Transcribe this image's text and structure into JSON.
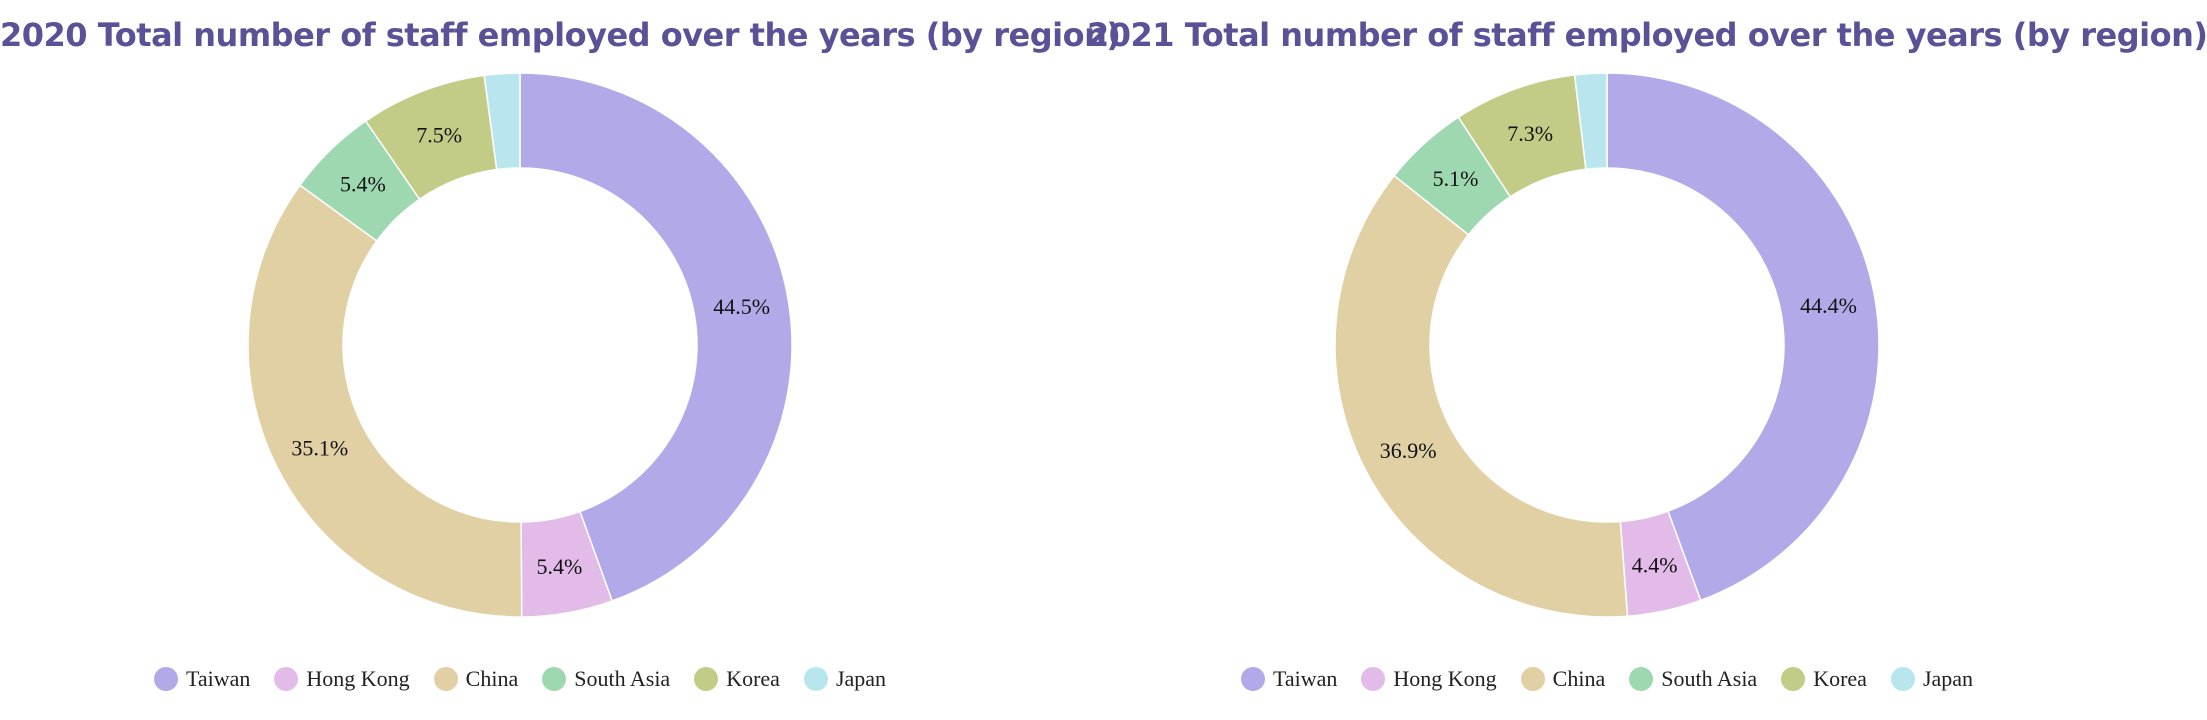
{
  "colors": {
    "title": "#5a5196",
    "Taiwan": "#b2a9e8",
    "Hong Kong": "#e2bbe9",
    "China": "#e1d0a3",
    "South Asia": "#9dd8b0",
    "Korea": "#c3cc87",
    "Japan": "#b9e6ee"
  },
  "chart_data": [
    {
      "type": "pie",
      "title": "2020 Total number of staff employed over the years (by region)",
      "categories": [
        "Taiwan",
        "Hong Kong",
        "China",
        "South Asia",
        "Korea",
        "Japan"
      ],
      "values": [
        44.5,
        5.4,
        35.1,
        5.4,
        7.5,
        2.1
      ],
      "data_labels": [
        "44.5%",
        "5.4%",
        "35.1%",
        "5.4%",
        "7.5%",
        ""
      ],
      "donut": true,
      "legend": "bottom"
    },
    {
      "type": "pie",
      "title": "2021 Total number of staff employed over the years (by region)",
      "categories": [
        "Taiwan",
        "Hong Kong",
        "China",
        "South Asia",
        "Korea",
        "Japan"
      ],
      "values": [
        44.4,
        4.4,
        36.9,
        5.1,
        7.3,
        1.9
      ],
      "data_labels": [
        "44.4%",
        "4.4%",
        "36.9%",
        "5.1%",
        "7.3%",
        ""
      ],
      "donut": true,
      "legend": "bottom"
    }
  ]
}
